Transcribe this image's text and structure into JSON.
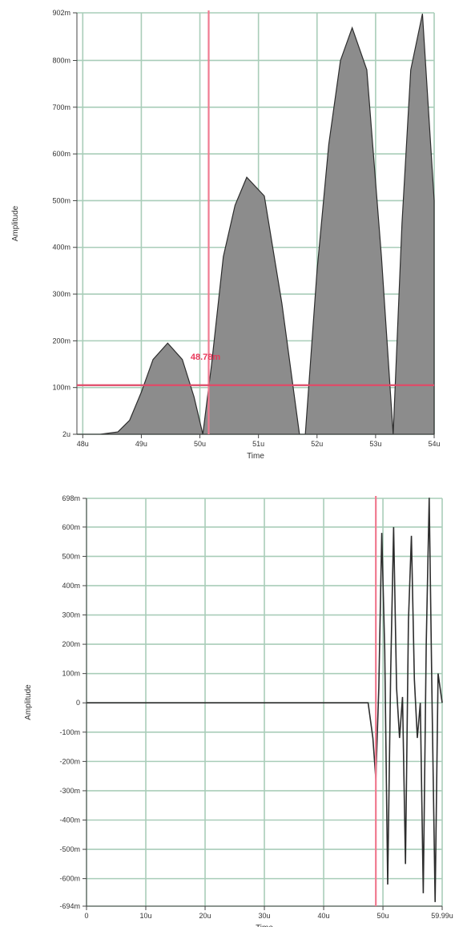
{
  "chart_data": [
    {
      "type": "area",
      "xlabel": "Time",
      "ylabel": "Amplitude",
      "xlim": [
        47.9,
        54.0
      ],
      "ylim": [
        0.0,
        0.902
      ],
      "x_ticks": [
        48,
        49,
        50,
        51,
        52,
        53,
        54
      ],
      "x_tick_labels": [
        "48u",
        "49u",
        "50u",
        "51u",
        "52u",
        "53u",
        "54u"
      ],
      "y_ticks": [
        0.0,
        0.1,
        0.2,
        0.3,
        0.4,
        0.5,
        0.6,
        0.7,
        0.8,
        0.902
      ],
      "y_tick_labels": [
        "2u",
        "100m",
        "200m",
        "300m",
        "400m",
        "500m",
        "600m",
        "700m",
        "800m",
        "902m"
      ],
      "grid": true,
      "series": [
        {
          "x": [
            47.9,
            48.3,
            48.6,
            48.8,
            49.0,
            49.2,
            49.45,
            49.7,
            49.9,
            50.05,
            50.2,
            50.4,
            50.6,
            50.8,
            51.1,
            51.4,
            51.7,
            51.8,
            52.0,
            52.2,
            52.4,
            52.6,
            52.85,
            53.1,
            53.3,
            53.45,
            53.6,
            53.8,
            54.0
          ],
          "y": [
            0.0,
            0.0,
            0.005,
            0.03,
            0.09,
            0.16,
            0.195,
            0.16,
            0.08,
            0.0,
            0.15,
            0.38,
            0.49,
            0.55,
            0.51,
            0.28,
            0.0,
            0.0,
            0.35,
            0.62,
            0.8,
            0.87,
            0.78,
            0.38,
            0.0,
            0.45,
            0.78,
            0.9,
            0.5
          ]
        }
      ],
      "cursors": {
        "vertical_x": 50.15,
        "horizontal_y": 0.105,
        "readout": "48.78m"
      }
    },
    {
      "type": "line",
      "xlabel": "Time",
      "ylabel": "Amplitude",
      "xlim": [
        0,
        59.99
      ],
      "ylim": [
        -0.694,
        0.698
      ],
      "x_ticks": [
        0,
        10,
        20,
        30,
        40,
        50,
        59.99
      ],
      "x_tick_labels": [
        "0",
        "10u",
        "20u",
        "30u",
        "40u",
        "50u",
        "59.99u"
      ],
      "y_ticks": [
        0.698,
        0.6,
        0.5,
        0.4,
        0.3,
        0.2,
        0.1,
        0.0,
        -0.1,
        -0.2,
        -0.3,
        -0.4,
        -0.5,
        -0.6,
        -0.694
      ],
      "y_tick_labels": [
        "698m",
        "600m",
        "500m",
        "400m",
        "300m",
        "200m",
        "100m",
        "0",
        "-100m",
        "-200m",
        "-300m",
        "-400m",
        "-500m",
        "-600m",
        "-694m"
      ],
      "grid": true,
      "series": [
        {
          "x": [
            0,
            10,
            20,
            30,
            40,
            47.5,
            48.3,
            48.8,
            49.3,
            49.8,
            50.3,
            50.8,
            51.3,
            51.8,
            52.3,
            52.8,
            53.3,
            53.8,
            54.3,
            54.8,
            55.3,
            55.8,
            56.3,
            56.8,
            57.3,
            57.8,
            58.3,
            58.8,
            59.3,
            59.99
          ],
          "y": [
            0,
            0,
            0,
            0,
            0,
            0,
            -0.12,
            -0.26,
            0.05,
            0.58,
            0.18,
            -0.62,
            0.1,
            0.6,
            0.05,
            -0.12,
            0.02,
            -0.55,
            0.28,
            0.57,
            0.08,
            -0.12,
            0.0,
            -0.65,
            0.2,
            0.7,
            -0.02,
            -0.68,
            0.1,
            0.0
          ]
        }
      ],
      "cursors": {
        "vertical_x": 48.8
      }
    }
  ]
}
